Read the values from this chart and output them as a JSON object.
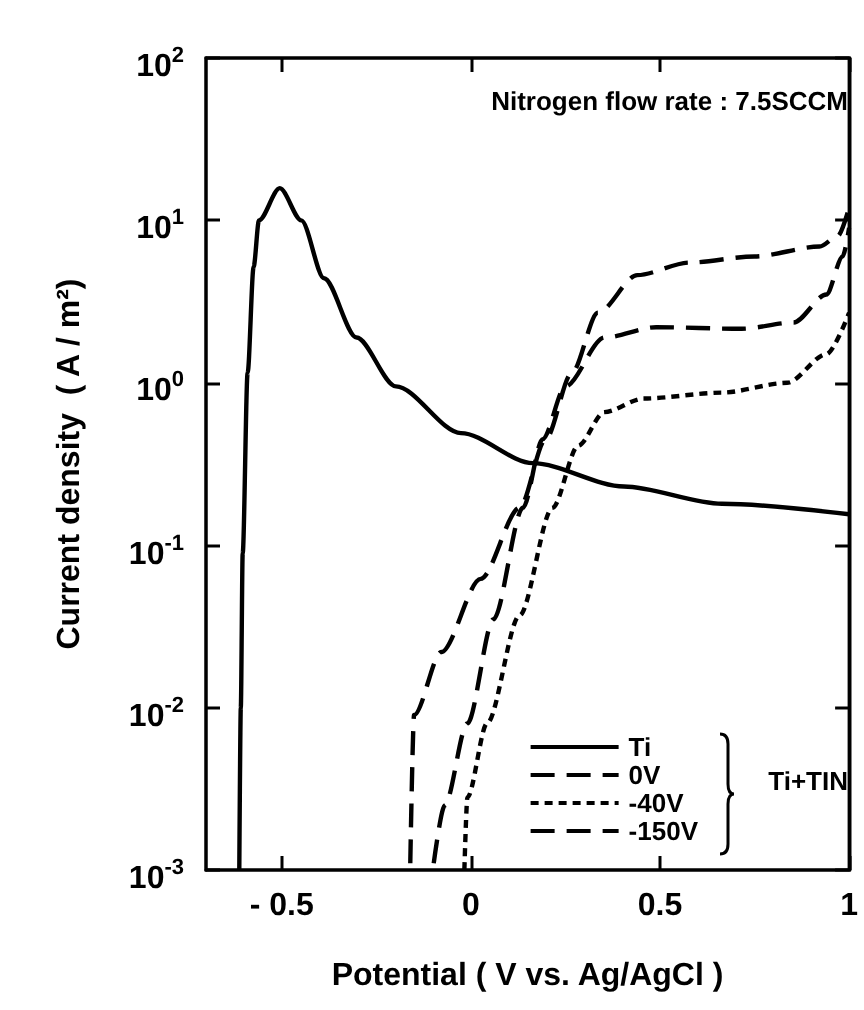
{
  "chart_data": {
    "type": "line",
    "xlabel": "Potential ( V vs. Ag/AgCl )",
    "ylabel": "Current density  ( A / m²)",
    "annotations": [
      "Nitrogen flow rate : 7.5SCCM",
      "Ti+TIN"
    ],
    "xlim": [
      -0.7,
      1
    ],
    "xticks": [
      {
        "value": -0.5,
        "label": "- 0.5"
      },
      0,
      0.5,
      1
    ],
    "ylim": [
      0.001,
      100
    ],
    "yticks": [
      {
        "value": 0.001,
        "label": "10$^{-3}$"
      },
      {
        "value": 0.01,
        "label": "10$^{-2}$"
      },
      {
        "value": 0.1,
        "label": "10$^{-1}$"
      },
      {
        "value": 1,
        "label": "10$^{0}$"
      },
      {
        "value": 10,
        "label": "10$^{1}$"
      },
      {
        "value": 100,
        "label": "10$^{2}$"
      }
    ],
    "log": "y",
    "grid": false,
    "legend": "bottom right",
    "marker": "none",
    "series": [
      {
        "name": "Ti",
        "color": "#000000",
        "line_style": "solid",
        "x": [
          -0.612,
          -0.608,
          -0.603,
          -0.59,
          -0.574,
          -0.56,
          -0.505,
          -0.448,
          -0.388,
          -0.302,
          -0.198,
          -0.026,
          0.164,
          0.405,
          0.664,
          1.0
        ],
        "values": [
          0.001,
          0.01,
          0.089,
          1.15,
          5.2,
          10,
          15.8,
          10,
          4.4,
          1.9,
          0.95,
          0.49,
          0.32,
          0.23,
          0.18,
          0.155
        ]
      },
      {
        "name": "0V",
        "color": "#000000",
        "line_style": "dashed",
        "x": [
          -0.16,
          -0.15,
          -0.078,
          0.026,
          0.129,
          0.198,
          0.267,
          0.336,
          0.44,
          0.578,
          0.75,
          0.922,
          0.97,
          1.0
        ],
        "values": [
          0.0011,
          0.009,
          0.022,
          0.062,
          0.17,
          0.45,
          1.15,
          2.7,
          4.6,
          5.5,
          6.0,
          6.9,
          8,
          12
        ]
      },
      {
        "name": "-40V",
        "color": "#000000",
        "line_style": "dotted",
        "x": [
          -0.017,
          -0.009,
          0.043,
          0.129,
          0.216,
          0.284,
          0.353,
          0.457,
          0.664,
          0.836,
          0.94,
          1.0
        ],
        "values": [
          0.001,
          0.0028,
          0.008,
          0.037,
          0.17,
          0.41,
          0.66,
          0.8,
          0.87,
          1.0,
          1.5,
          2.7
        ]
      },
      {
        "name": "-150V",
        "color": "#000000",
        "line_style": "dashed",
        "x": [
          -0.098,
          -0.069,
          -0.009,
          0.06,
          0.138,
          0.19,
          0.25,
          0.353,
          0.49,
          0.716,
          0.853,
          0.94,
          0.983,
          1.0
        ],
        "values": [
          0.0011,
          0.0025,
          0.008,
          0.035,
          0.17,
          0.45,
          0.95,
          1.9,
          2.2,
          2.15,
          2.35,
          3.5,
          6,
          9
        ]
      }
    ]
  }
}
